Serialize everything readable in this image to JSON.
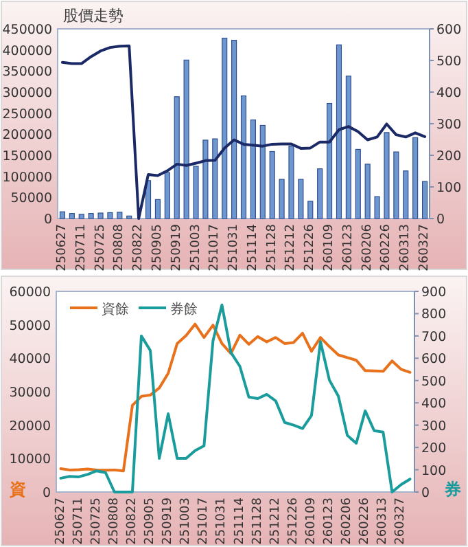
{
  "chart_data": [
    {
      "type": "bar",
      "title": "股價走勢",
      "categories": [
        "250627",
        null,
        "250711",
        null,
        "250725",
        null,
        "250808",
        null,
        "250822",
        null,
        "250905",
        null,
        "250919",
        null,
        "251003",
        null,
        "251017",
        null,
        "251031",
        null,
        "251114",
        null,
        "251128",
        null,
        "251212",
        null,
        "251226",
        null,
        "260109",
        null,
        "260123",
        null,
        "260206",
        null,
        "260226",
        null,
        "260313",
        null,
        "260327"
      ],
      "series": [
        {
          "color": "#6f97cf",
          "values": [
            16000,
            12000,
            10000,
            12000,
            13000,
            14000,
            15000,
            6000,
            0,
            90000,
            45000,
            109000,
            289000,
            376000,
            124000,
            186000,
            189000,
            428000,
            423000,
            291000,
            234000,
            221000,
            159000,
            93000,
            172000,
            93000,
            41000,
            118000,
            273000,
            412000,
            338000,
            164000,
            129000,
            52000,
            204000,
            158000,
            113000,
            192000,
            88000
          ]
        },
        {
          "type": "line",
          "axis": "y2",
          "color": "#1b2a66",
          "values": [
            494,
            490,
            490,
            512,
            530,
            541,
            545,
            546,
            0,
            139,
            136,
            151,
            172,
            168,
            175,
            183,
            184,
            223,
            249,
            235,
            232,
            229,
            235,
            236,
            236,
            222,
            223,
            242,
            242,
            281,
            291,
            275,
            249,
            258,
            299,
            265,
            258,
            271,
            259
          ]
        }
      ],
      "ylim": [
        0,
        450000
      ],
      "yticks": [
        0,
        50000,
        100000,
        150000,
        200000,
        250000,
        300000,
        350000,
        400000,
        450000
      ],
      "y2lim": [
        0,
        600
      ],
      "y2ticks": [
        0,
        100,
        200,
        300,
        400,
        500,
        600
      ],
      "grid": false,
      "legend": false
    },
    {
      "type": "line",
      "ylabel": "資",
      "y2label": "券",
      "categories": [
        "250627",
        null,
        "250711",
        null,
        "250725",
        null,
        "250808",
        null,
        "250822",
        null,
        "250905",
        null,
        "250919",
        null,
        "251003",
        null,
        "251017",
        null,
        "251031",
        null,
        "251114",
        null,
        "251128",
        null,
        "251212",
        null,
        "251226",
        null,
        "260109",
        null,
        "260123",
        null,
        "260206",
        null,
        "260226",
        null,
        "260313",
        null,
        "260327",
        null
      ],
      "series": [
        {
          "name": "資餘",
          "color": "#e8711c",
          "values": [
            7000,
            6600,
            6700,
            6900,
            6600,
            6500,
            6600,
            6300,
            25900,
            28600,
            29000,
            31100,
            35500,
            44400,
            46800,
            50200,
            46200,
            49900,
            44400,
            41400,
            46900,
            44200,
            46500,
            44900,
            46200,
            44400,
            44700,
            47500,
            42100,
            46200,
            43500,
            41000,
            40200,
            39400,
            36300,
            36200,
            36100,
            39200,
            36700,
            35800
          ]
        },
        {
          "name": "券餘",
          "color": "#1b9c9c",
          "axis": "y2",
          "values": [
            62,
            70,
            68,
            79,
            95,
            87,
            0,
            0,
            0,
            700,
            635,
            151,
            351,
            151,
            151,
            186,
            207,
            678,
            839,
            626,
            564,
            426,
            419,
            438,
            409,
            312,
            300,
            285,
            343,
            675,
            502,
            430,
            254,
            219,
            364,
            275,
            269,
            0,
            33,
            58
          ]
        }
      ],
      "ylim": [
        0,
        60000
      ],
      "yticks": [
        0,
        10000,
        20000,
        30000,
        40000,
        50000,
        60000
      ],
      "y2lim": [
        0,
        900
      ],
      "y2ticks": [
        0,
        100,
        200,
        300,
        400,
        500,
        600,
        700,
        800,
        900
      ],
      "grid": false,
      "legend": "top left"
    }
  ]
}
